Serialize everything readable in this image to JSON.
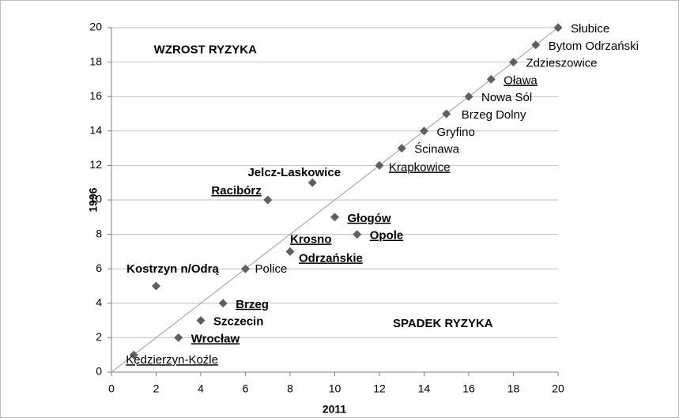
{
  "chart_data": {
    "type": "scatter",
    "xlabel": "2011",
    "ylabel": "1996",
    "annotations": [
      {
        "text": "WZROST  RYZYKA",
        "x": 1.9,
        "y": 18.7
      },
      {
        "text": "SPADEK  RYZYKA",
        "x": 12.6,
        "y": 2.8
      }
    ],
    "labels": [
      "Kędzierzyn-Koźle",
      "Wrocław",
      "Szczecin",
      "Brzeg",
      "Kostrzyn n/Odrą",
      "Police",
      "Krosno Odrzańskie",
      "Opole",
      "Głogów",
      "Racibórz",
      "Jelcz-Laskowice",
      "Krapkowice",
      "Ścinawa",
      "Gryfino",
      "Brzeg Dolny",
      "Nowa Sól",
      "Oława",
      "Zdzieszowice",
      "Bytom Odrzański",
      "Słubice"
    ],
    "x": [
      1,
      3,
      4,
      5,
      2,
      6,
      8,
      11,
      10,
      7,
      9,
      12,
      13,
      14,
      15,
      16,
      17,
      18,
      19,
      20
    ],
    "values": [
      1,
      2,
      3,
      4,
      5,
      6,
      7,
      8,
      9,
      10,
      11,
      12,
      13,
      14,
      15,
      16,
      17,
      18,
      19,
      20
    ],
    "bold": [
      false,
      true,
      true,
      true,
      true,
      false,
      true,
      true,
      true,
      true,
      true,
      false,
      false,
      false,
      false,
      false,
      false,
      false,
      false,
      false
    ],
    "underline": [
      true,
      true,
      false,
      true,
      false,
      false,
      true,
      true,
      true,
      true,
      false,
      true,
      false,
      false,
      false,
      false,
      true,
      false,
      false,
      false
    ],
    "color": "#5f5f5f",
    "xlim": [
      0,
      20
    ],
    "xticks": [
      0,
      2,
      4,
      6,
      8,
      10,
      12,
      14,
      16,
      18,
      20
    ],
    "ylim": [
      0,
      20
    ],
    "yticks": [
      0,
      2,
      4,
      6,
      8,
      10,
      12,
      14,
      16,
      18,
      20
    ],
    "grid": true,
    "diagonal": true
  }
}
